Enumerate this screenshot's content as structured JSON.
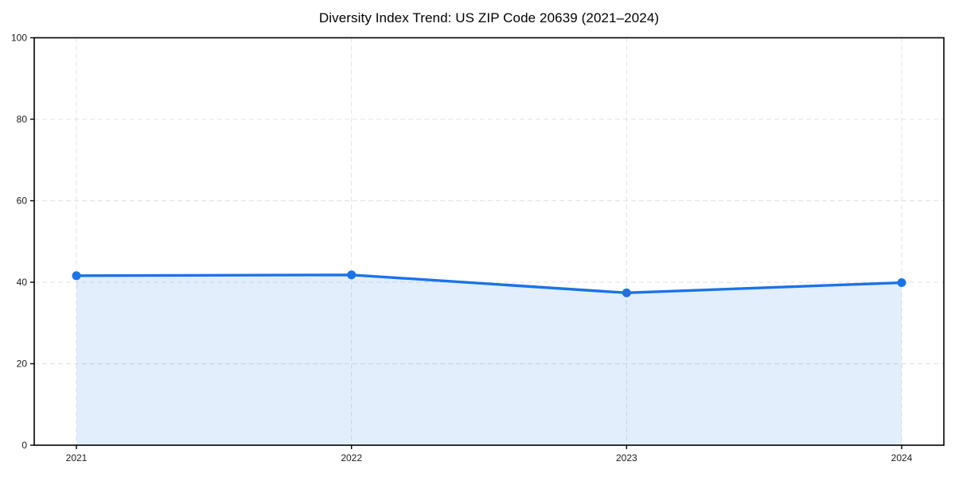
{
  "chart_data": {
    "type": "area",
    "title": "Diversity Index Trend: US ZIP Code 20639 (2021–2024)",
    "categories": [
      "2021",
      "2022",
      "2023",
      "2024"
    ],
    "values": [
      41.6,
      41.8,
      37.4,
      39.9
    ],
    "xlabel": "",
    "ylabel": "",
    "ylim": [
      0,
      100
    ],
    "yticks": [
      0,
      20,
      40,
      60,
      80,
      100
    ],
    "grid": true,
    "legend": false,
    "marker": "circle",
    "colors": {
      "line": "#1a73e8",
      "marker": "#1a73e8",
      "fill": "#1a73e8",
      "grid": "#dcdcdc",
      "spine": "#000000",
      "tick_label": "#1a1a1a",
      "background": "#ffffff"
    },
    "fill_opacity": 0.12
  }
}
